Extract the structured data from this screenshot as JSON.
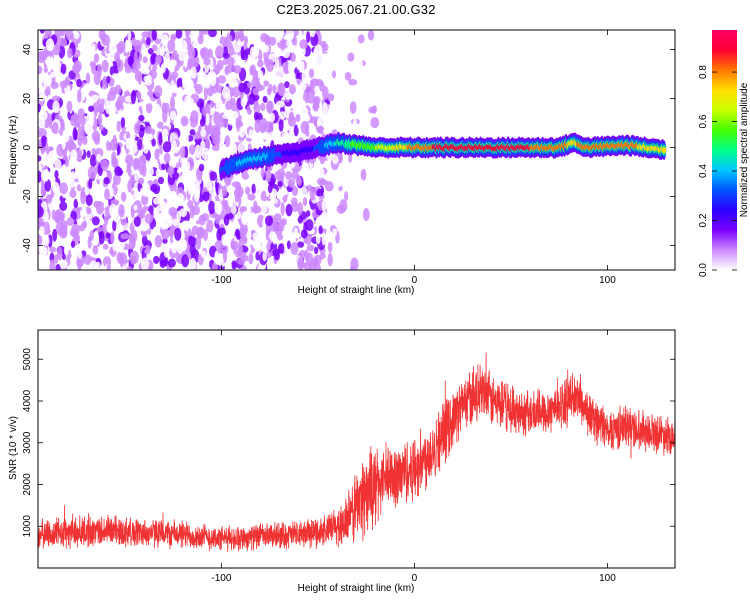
{
  "figure_title": "C2E3.2025.067.21.00.G32",
  "colors": {
    "series": "#f03232",
    "axis": "#000000",
    "background": "#ffffff"
  },
  "chart_data": [
    {
      "type": "heatmap",
      "xlabel": "Height of straight line (km)",
      "ylabel": "Frequency (Hz)",
      "xlim": [
        -195,
        135
      ],
      "ylim": [
        -50,
        48
      ],
      "x_ticks": [
        -100,
        0,
        100
      ],
      "y_ticks": [
        -40,
        -20,
        0,
        20,
        40
      ],
      "colorbar": {
        "label": "Normalized spectral amplitude",
        "range": [
          0,
          0.97
        ],
        "ticks": [
          "0.0",
          "0.2",
          "0.4",
          "0.6",
          "0.8"
        ],
        "colormap": [
          "#ffffff",
          "#cc88ff",
          "#7a00ff",
          "#2a00ff",
          "#0055ff",
          "#00c8ff",
          "#00ff88",
          "#44ff00",
          "#ccff00",
          "#ffdd00",
          "#ff7700",
          "#ff0033",
          "#ff0066"
        ]
      },
      "ridge": [
        {
          "x": -100,
          "y": -9,
          "amp": 0.3
        },
        {
          "x": -90,
          "y": -6,
          "amp": 0.38
        },
        {
          "x": -80,
          "y": -4,
          "amp": 0.42
        },
        {
          "x": -70,
          "y": -3,
          "amp": 0.3
        },
        {
          "x": -60,
          "y": -2,
          "amp": 0.22
        },
        {
          "x": -50,
          "y": 0,
          "amp": 0.3
        },
        {
          "x": -40,
          "y": 2,
          "amp": 0.45
        },
        {
          "x": -30,
          "y": 1,
          "amp": 0.55
        },
        {
          "x": -20,
          "y": 0,
          "amp": 0.6
        },
        {
          "x": -10,
          "y": 0,
          "amp": 0.7
        },
        {
          "x": 0,
          "y": 0,
          "amp": 0.8
        },
        {
          "x": 20,
          "y": 0,
          "amp": 0.9
        },
        {
          "x": 40,
          "y": 0,
          "amp": 0.9
        },
        {
          "x": 60,
          "y": 0,
          "amp": 0.85
        },
        {
          "x": 75,
          "y": 0,
          "amp": 0.8
        },
        {
          "x": 82,
          "y": 2,
          "amp": 0.75
        },
        {
          "x": 90,
          "y": 0,
          "amp": 0.8
        },
        {
          "x": 110,
          "y": 1,
          "amp": 0.8
        },
        {
          "x": 130,
          "y": -1,
          "amp": 0.7
        }
      ]
    },
    {
      "type": "line",
      "xlabel": "Height of straight line (km)",
      "ylabel": "SNR (10 * v/v)",
      "xlim": [
        -195,
        135
      ],
      "ylim": [
        0,
        5700
      ],
      "x_ticks": [
        -100,
        0,
        100
      ],
      "y_ticks": [
        1000,
        2000,
        3000,
        4000,
        5000
      ],
      "series": [
        {
          "x": [
            -195,
            -180,
            -160,
            -140,
            -120,
            -100,
            -80,
            -60,
            -45,
            -35,
            -30,
            -25,
            -20,
            -15,
            -10,
            -5,
            0,
            5,
            10,
            15,
            20,
            25,
            30,
            35,
            40,
            50,
            60,
            70,
            80,
            85,
            90,
            100,
            110,
            120,
            130,
            135
          ],
          "y": [
            800,
            850,
            900,
            850,
            800,
            700,
            750,
            800,
            900,
            1100,
            1500,
            1800,
            2000,
            2100,
            2200,
            2300,
            2400,
            2600,
            2900,
            3200,
            3600,
            3900,
            4100,
            4200,
            4000,
            3800,
            3700,
            3800,
            4000,
            4100,
            3700,
            3300,
            3400,
            3300,
            3200,
            3150
          ],
          "noise": [
            400,
            450,
            450,
            400,
            400,
            350,
            350,
            400,
            450,
            700,
            1100,
            1200,
            1100,
            1000,
            950,
            900,
            950,
            900,
            900,
            900,
            800,
            800,
            800,
            800,
            750,
            700,
            650,
            650,
            650,
            650,
            650,
            600,
            600,
            550,
            550,
            500
          ]
        }
      ]
    }
  ]
}
